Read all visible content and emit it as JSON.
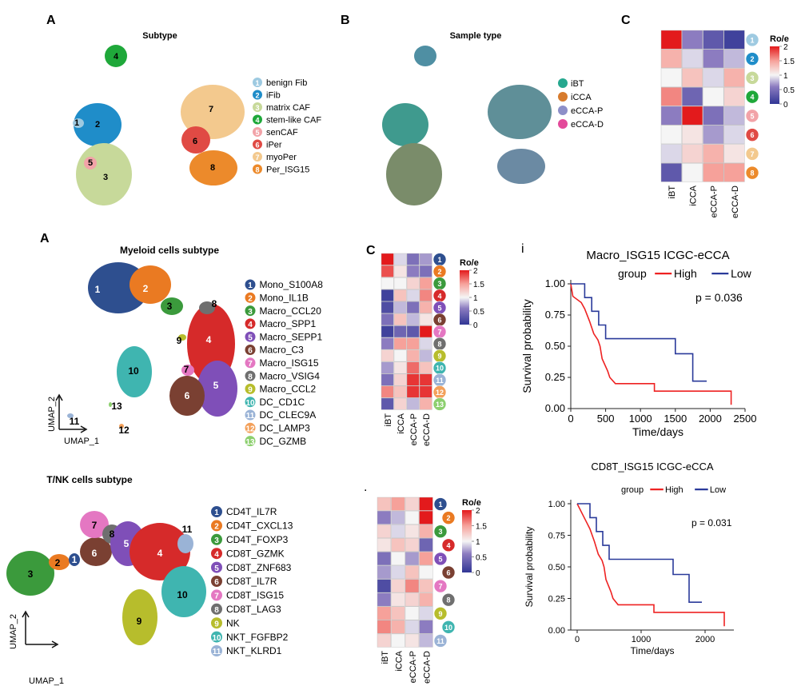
{
  "panel_letters": {
    "fib_umap": "A",
    "fib_sample": "B",
    "fib_roe": "C",
    "mye_umap": "A",
    "mye_roe": "C",
    "km_top": "i",
    "tnk_roe": "."
  },
  "fibro": {
    "umap_title": "Subtype",
    "sample_title": "Sample type",
    "legend": [
      {
        "num": "1",
        "label": "benign Fib",
        "color": "#9ecae1"
      },
      {
        "num": "2",
        "label": "iFib",
        "color": "#1f8dc9"
      },
      {
        "num": "3",
        "label": "matrix CAF",
        "color": "#c7d99a"
      },
      {
        "num": "4",
        "label": "stem-like CAF",
        "color": "#1fa83a"
      },
      {
        "num": "5",
        "label": "senCAF",
        "color": "#f2a3a8"
      },
      {
        "num": "6",
        "label": "iPer",
        "color": "#e04a44"
      },
      {
        "num": "7",
        "label": "myoPer",
        "color": "#f3c98e"
      },
      {
        "num": "8",
        "label": "Per_ISG15",
        "color": "#ec8a2b"
      }
    ],
    "samples": [
      {
        "label": "iBT",
        "color": "#26a88f"
      },
      {
        "label": "iCCA",
        "color": "#d77b2d"
      },
      {
        "label": "eCCA-P",
        "color": "#8d8fc8"
      },
      {
        "label": "eCCA-D",
        "color": "#e34a9a"
      }
    ]
  },
  "myeloid": {
    "title": "Myeloid cells subtype",
    "axis_x": "UMAP_1",
    "axis_y": "UMAP_2",
    "legend": [
      {
        "num": "1",
        "label": "Mono_S100A8",
        "color": "#2e4f8f"
      },
      {
        "num": "2",
        "label": "Mono_IL1B",
        "color": "#ea7a22"
      },
      {
        "num": "3",
        "label": "Macro_CCL20",
        "color": "#3b9a3c"
      },
      {
        "num": "4",
        "label": "Macro_SPP1",
        "color": "#d62a2a"
      },
      {
        "num": "5",
        "label": "Macro_SEPP1",
        "color": "#7f4fb8"
      },
      {
        "num": "6",
        "label": "Macro_C3",
        "color": "#7a4032"
      },
      {
        "num": "7",
        "label": "Macro_ISG15",
        "color": "#e477c2"
      },
      {
        "num": "8",
        "label": "Macro_VSIG4",
        "color": "#6f6f6f"
      },
      {
        "num": "9",
        "label": "Macro_CCL2",
        "color": "#b7bd2c"
      },
      {
        "num": "10",
        "label": "DC_CD1C",
        "color": "#3fb5b0"
      },
      {
        "num": "11",
        "label": "DC_CLEC9A",
        "color": "#9ab3d6"
      },
      {
        "num": "12",
        "label": "DC_LAMP3",
        "color": "#f3a05a"
      },
      {
        "num": "13",
        "label": "DC_GZMB",
        "color": "#8ccf6e"
      }
    ]
  },
  "tnk": {
    "title": "T/NK cells subtype",
    "axis_x": "UMAP_1",
    "axis_y": "UMAP_2",
    "legend": [
      {
        "num": "1",
        "label": "CD4T_IL7R",
        "color": "#2e4f8f"
      },
      {
        "num": "2",
        "label": "CD4T_CXCL13",
        "color": "#ea7a22"
      },
      {
        "num": "3",
        "label": "CD4T_FOXP3",
        "color": "#3b9a3c"
      },
      {
        "num": "4",
        "label": "CD8T_GZMK",
        "color": "#d62a2a"
      },
      {
        "num": "5",
        "label": "CD8T_ZNF683",
        "color": "#7f4fb8"
      },
      {
        "num": "6",
        "label": "CD8T_IL7R",
        "color": "#7a4032"
      },
      {
        "num": "7",
        "label": "CD8T_ISG15",
        "color": "#e477c2"
      },
      {
        "num": "8",
        "label": "CD8T_LAG3",
        "color": "#6f6f6f"
      },
      {
        "num": "9",
        "label": "NK",
        "color": "#b7bd2c"
      },
      {
        "num": "10",
        "label": "NKT_FGFBP2",
        "color": "#3fb5b0"
      },
      {
        "num": "11",
        "label": "NKT_KLRD1",
        "color": "#9ab3d6"
      }
    ]
  },
  "heat_labels": {
    "title": "Ro/e",
    "ticks": [
      "2",
      "1.5",
      "1",
      "0.5",
      "0"
    ]
  },
  "chart_data": [
    {
      "type": "heatmap",
      "id": "fib_roe",
      "columns": [
        "iBT",
        "iCCA",
        "eCCA-P",
        "eCCA-D"
      ],
      "rows": [
        "1",
        "2",
        "3",
        "4",
        "5",
        "6",
        "7",
        "8"
      ],
      "values": [
        [
          2.0,
          0.6,
          0.3,
          0.1
        ],
        [
          1.4,
          0.9,
          0.6,
          0.8
        ],
        [
          1.0,
          1.3,
          0.9,
          1.4
        ],
        [
          1.6,
          0.4,
          1.0,
          1.2
        ],
        [
          0.6,
          2.0,
          0.5,
          0.8
        ],
        [
          1.0,
          1.1,
          0.7,
          0.9
        ],
        [
          0.9,
          1.2,
          1.4,
          1.1
        ],
        [
          0.3,
          1.0,
          1.5,
          1.5
        ]
      ],
      "scale": [
        0,
        2
      ],
      "colorbar_ticks": [
        2,
        1.5,
        1,
        0.5,
        0
      ],
      "colorbar_title": "Ro/e"
    },
    {
      "type": "heatmap",
      "id": "mye_roe",
      "columns": [
        "iBT",
        "iCCA",
        "eCCA-P",
        "eCCA-D"
      ],
      "rows": [
        "1",
        "2",
        "3",
        "4",
        "5",
        "6",
        "7",
        "8",
        "9",
        "10",
        "11",
        "12",
        "13"
      ],
      "values": [
        [
          2.0,
          0.9,
          0.5,
          0.7
        ],
        [
          1.8,
          1.1,
          0.6,
          0.5
        ],
        [
          1.0,
          1.0,
          1.2,
          1.5
        ],
        [
          0.1,
          1.3,
          0.9,
          1.6
        ],
        [
          0.2,
          0.8,
          0.5,
          1.4
        ],
        [
          0.5,
          1.3,
          0.8,
          1.1
        ],
        [
          0.1,
          0.4,
          0.3,
          2.0
        ],
        [
          0.6,
          1.5,
          1.5,
          0.9
        ],
        [
          1.2,
          1.0,
          1.4,
          0.8
        ],
        [
          0.7,
          1.1,
          1.7,
          1.3
        ],
        [
          0.5,
          1.2,
          1.9,
          1.9
        ],
        [
          1.6,
          1.3,
          1.9,
          1.9
        ],
        [
          0.3,
          1.2,
          0.8,
          1.4
        ]
      ],
      "scale": [
        0,
        2
      ],
      "colorbar_ticks": [
        2,
        1.5,
        1,
        0.5,
        0
      ],
      "colorbar_title": "Ro/e"
    },
    {
      "type": "heatmap",
      "id": "tnk_roe",
      "columns": [
        "iBT",
        "iCCA",
        "eCCA-P",
        "eCCA-D"
      ],
      "rows": [
        "1",
        "2",
        "3",
        "4",
        "5",
        "6",
        "7",
        "8",
        "9",
        "10",
        "11"
      ],
      "values": [
        [
          1.3,
          1.5,
          1.2,
          2.0
        ],
        [
          0.6,
          0.8,
          1.0,
          2.0
        ],
        [
          1.2,
          0.9,
          1.1,
          1.4
        ],
        [
          1.1,
          1.3,
          1.2,
          0.4
        ],
        [
          0.5,
          1.0,
          0.7,
          1.5
        ],
        [
          0.7,
          0.9,
          1.3,
          1.0
        ],
        [
          0.2,
          1.2,
          1.6,
          1.3
        ],
        [
          0.6,
          1.1,
          1.2,
          1.4
        ],
        [
          1.5,
          1.3,
          1.0,
          0.9
        ],
        [
          1.6,
          1.4,
          0.9,
          0.6
        ],
        [
          1.2,
          1.0,
          1.1,
          0.8
        ]
      ],
      "scale": [
        0,
        2
      ],
      "colorbar_ticks": [
        2,
        1.5,
        1,
        0.5,
        0
      ],
      "colorbar_title": "Ro/e"
    },
    {
      "type": "line",
      "id": "km_macro",
      "title": "Macro_ISG15 ICGC-eCCA",
      "xlabel": "Time/days",
      "ylabel": "Survival probability",
      "xlim": [
        0,
        2500
      ],
      "ylim": [
        0,
        1
      ],
      "xticks": [
        "0",
        "500",
        "1000",
        "1500",
        "2000",
        "2500"
      ],
      "yticks": [
        "0.00",
        "0.25",
        "0.50",
        "0.75",
        "1.00"
      ],
      "legend_title": "group",
      "p_value": "p = 0.036",
      "series": [
        {
          "name": "High",
          "color": "#ee2222",
          "points": [
            [
              0,
              1
            ],
            [
              30,
              0.9
            ],
            [
              150,
              0.85
            ],
            [
              200,
              0.8
            ],
            [
              270,
              0.7
            ],
            [
              330,
              0.6
            ],
            [
              390,
              0.55
            ],
            [
              420,
              0.5
            ],
            [
              450,
              0.4
            ],
            [
              530,
              0.3
            ],
            [
              560,
              0.25
            ],
            [
              640,
              0.2
            ],
            [
              1200,
              0.2
            ],
            [
              1200,
              0.14
            ],
            [
              2300,
              0.14
            ],
            [
              2300,
              0.03
            ]
          ]
        },
        {
          "name": "Low",
          "color": "#2a3a9a",
          "points": [
            [
              0,
              1
            ],
            [
              200,
              1
            ],
            [
              200,
              0.89
            ],
            [
              300,
              0.89
            ],
            [
              300,
              0.78
            ],
            [
              400,
              0.78
            ],
            [
              400,
              0.67
            ],
            [
              500,
              0.67
            ],
            [
              500,
              0.56
            ],
            [
              1500,
              0.56
            ],
            [
              1500,
              0.44
            ],
            [
              1750,
              0.44
            ],
            [
              1750,
              0.22
            ],
            [
              1950,
              0.22
            ]
          ]
        }
      ]
    },
    {
      "type": "line",
      "id": "km_cd8",
      "title": "CD8T_ISG15 ICGC-eCCA",
      "xlabel": "Time/days",
      "ylabel": "Survival probability",
      "xlim": [
        -100,
        2450
      ],
      "ylim": [
        0,
        1
      ],
      "xticks": [
        "0",
        "1000",
        "2000"
      ],
      "yticks": [
        "0.00",
        "0.25",
        "0.50",
        "0.75",
        "1.00"
      ],
      "legend_title": "group",
      "p_value": "p = 0.031",
      "series": [
        {
          "name": "High",
          "color": "#ee2222",
          "points": [
            [
              0,
              1
            ],
            [
              100,
              0.9
            ],
            [
              150,
              0.85
            ],
            [
              200,
              0.8
            ],
            [
              270,
              0.7
            ],
            [
              330,
              0.6
            ],
            [
              390,
              0.55
            ],
            [
              420,
              0.5
            ],
            [
              450,
              0.4
            ],
            [
              530,
              0.3
            ],
            [
              560,
              0.25
            ],
            [
              640,
              0.2
            ],
            [
              1200,
              0.2
            ],
            [
              1200,
              0.14
            ],
            [
              2300,
              0.14
            ],
            [
              2300,
              0.03
            ]
          ]
        },
        {
          "name": "Low",
          "color": "#2a3a9a",
          "points": [
            [
              0,
              1
            ],
            [
              200,
              1
            ],
            [
              200,
              0.89
            ],
            [
              300,
              0.89
            ],
            [
              300,
              0.78
            ],
            [
              400,
              0.78
            ],
            [
              400,
              0.67
            ],
            [
              500,
              0.67
            ],
            [
              500,
              0.56
            ],
            [
              1500,
              0.56
            ],
            [
              1500,
              0.44
            ],
            [
              1750,
              0.44
            ],
            [
              1750,
              0.22
            ],
            [
              1950,
              0.22
            ]
          ]
        }
      ]
    }
  ]
}
